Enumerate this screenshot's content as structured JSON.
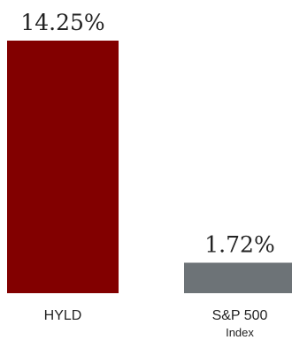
{
  "chart_data": {
    "type": "bar",
    "categories": [
      "HYLD",
      "S&P 500"
    ],
    "category_sublabels": [
      "",
      "Index"
    ],
    "values": [
      14.25,
      1.72
    ],
    "value_labels": [
      "14.25%",
      "1.72%"
    ],
    "colors": [
      "#820000",
      "#6d7377"
    ],
    "ylim": [
      0,
      14.25
    ],
    "title": "",
    "xlabel": "",
    "ylabel": "",
    "grid": false,
    "legend": "none"
  }
}
